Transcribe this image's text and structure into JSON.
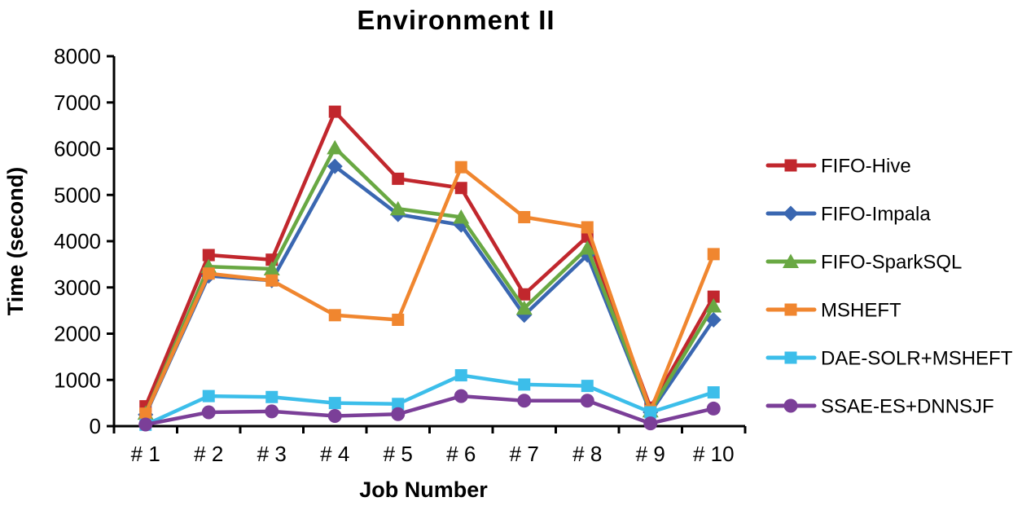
{
  "chart_data": {
    "type": "line",
    "title": "Environment II",
    "xlabel": "Job Number",
    "ylabel": "Time (second)",
    "categories": [
      "# 1",
      "# 2",
      "# 3",
      "# 4",
      "# 5",
      "# 6",
      "# 7",
      "# 8",
      "# 9",
      "# 10"
    ],
    "ylim": [
      0,
      8000
    ],
    "ytick_step": 1000,
    "grid": false,
    "legend_position": "right",
    "axis_color": "#000000",
    "series": [
      {
        "name": "FIFO-Hive",
        "color": "#c1272d",
        "marker": "square",
        "values": [
          430,
          3700,
          3600,
          6800,
          5350,
          5150,
          2850,
          4100,
          400,
          2800
        ]
      },
      {
        "name": "FIFO-Impala",
        "color": "#3a67b1",
        "marker": "diamond",
        "values": [
          250,
          3250,
          3150,
          5620,
          4580,
          4350,
          2400,
          3700,
          300,
          2300
        ]
      },
      {
        "name": "FIFO-SparkSQL",
        "color": "#69a843",
        "marker": "triangle",
        "values": [
          280,
          3450,
          3400,
          6020,
          4700,
          4520,
          2550,
          3850,
          330,
          2600
        ]
      },
      {
        "name": "MSHEFT",
        "color": "#f0862f",
        "marker": "square",
        "values": [
          270,
          3300,
          3150,
          2400,
          2300,
          5600,
          4520,
          4300,
          330,
          3720
        ]
      },
      {
        "name": "DAE-SOLR+MSHEFT",
        "color": "#3cbeea",
        "marker": "square",
        "values": [
          30,
          650,
          630,
          500,
          480,
          1100,
          900,
          870,
          300,
          730
        ]
      },
      {
        "name": "SSAE-ES+DNNSJF",
        "color": "#7b3f98",
        "marker": "circle",
        "values": [
          35,
          300,
          320,
          220,
          260,
          650,
          550,
          550,
          60,
          380
        ]
      }
    ]
  }
}
